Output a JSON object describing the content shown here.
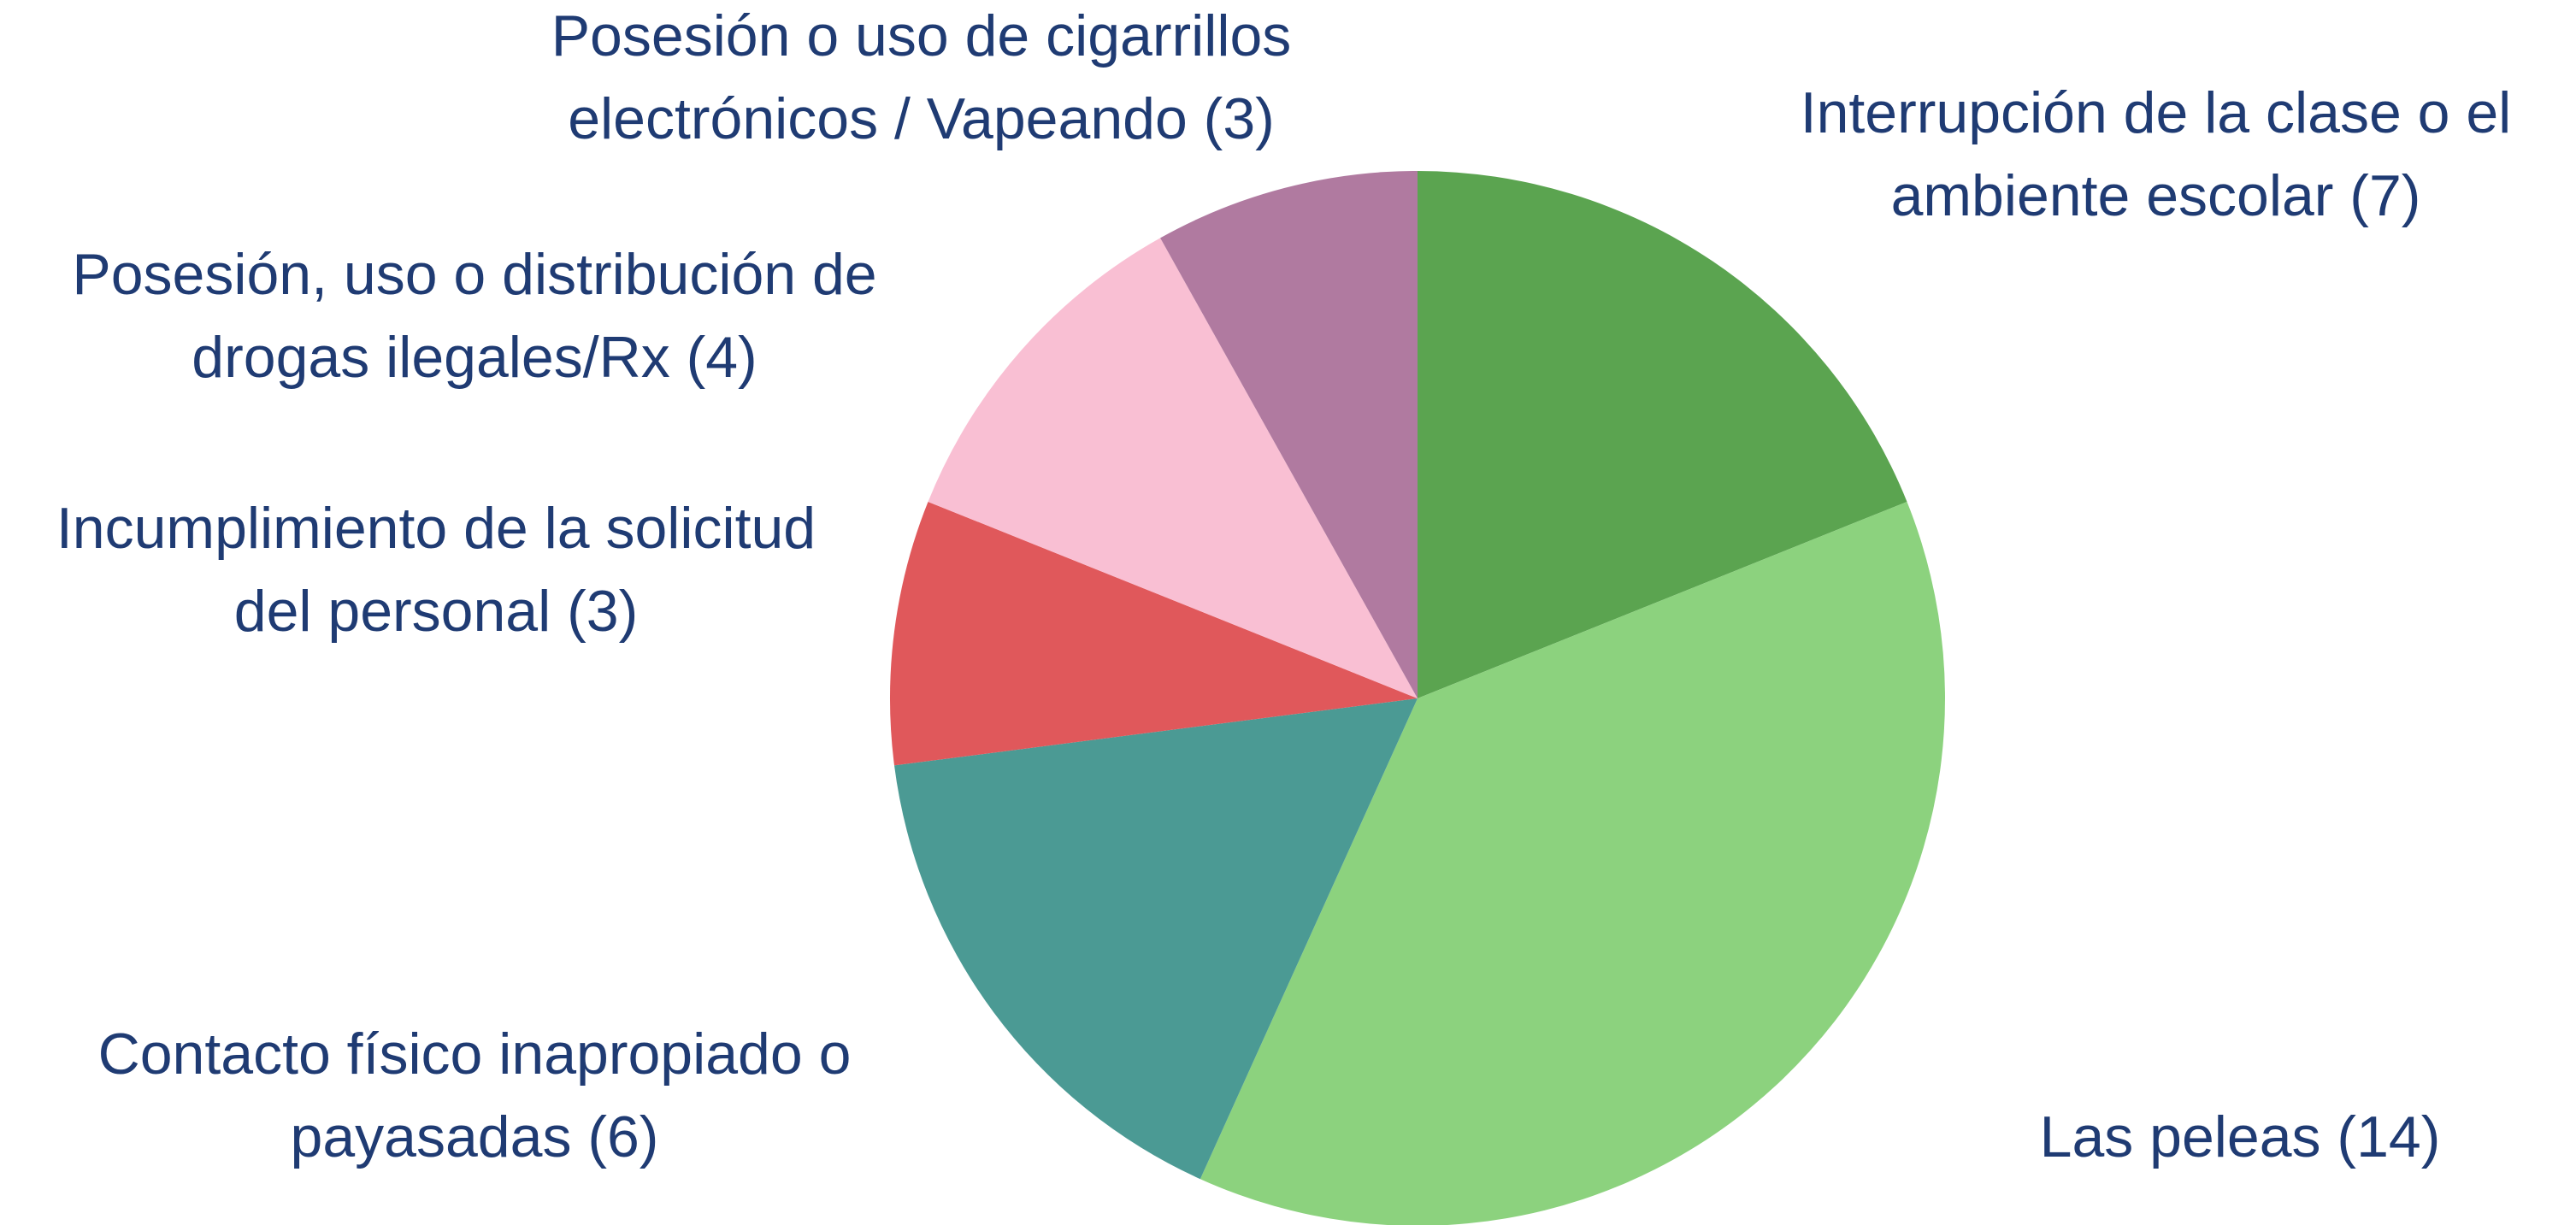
{
  "chart_data": {
    "type": "pie",
    "categories": [
      "Interrupción de la clase o el ambiente escolar (7)",
      "Las peleas (14)",
      "Contacto físico inapropiado o payasadas (6)",
      "Incumplimiento de la solicitud del personal (3)",
      "Posesión, uso o distribución de drogas ilegales/Rx (4)",
      "Posesión o uso de cigarrillos electrónicos / Vapeando (3)"
    ],
    "values": [
      7,
      14,
      6,
      3,
      4,
      3
    ],
    "colors": [
      "#5ba450",
      "#8cd27e",
      "#4b9a94",
      "#e0585b",
      "#f9bfd3",
      "#b07aa0"
    ]
  }
}
